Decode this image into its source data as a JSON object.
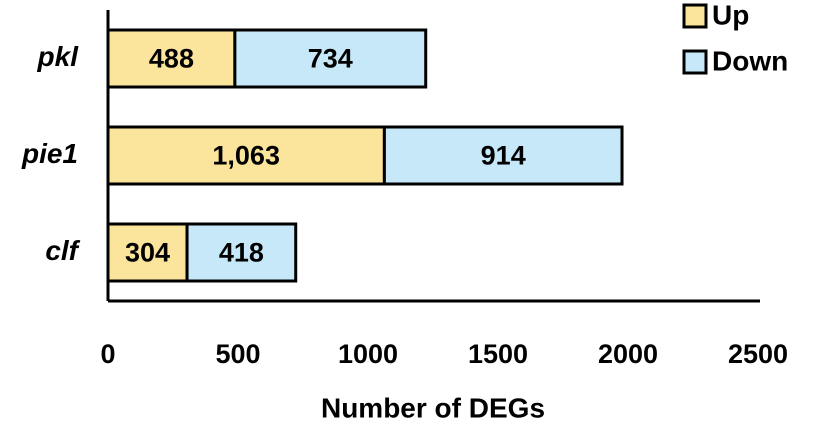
{
  "chart_data": {
    "type": "stacked-barh",
    "categories": [
      "pkl",
      "pie1",
      "clf"
    ],
    "series": [
      {
        "name": "Up",
        "color": "#fbe49b",
        "values": [
          488,
          1063,
          304
        ],
        "value_labels": [
          "488",
          "1,063",
          "304"
        ]
      },
      {
        "name": "Down",
        "color": "#c6e8f8",
        "values": [
          734,
          914,
          418
        ]
      }
    ],
    "x_label": "Number of DEGs",
    "xlim": [
      0,
      2500
    ],
    "xticks": [
      0,
      500,
      1000,
      1500,
      2000,
      2500
    ],
    "legend": "upper right",
    "grid": false
  }
}
